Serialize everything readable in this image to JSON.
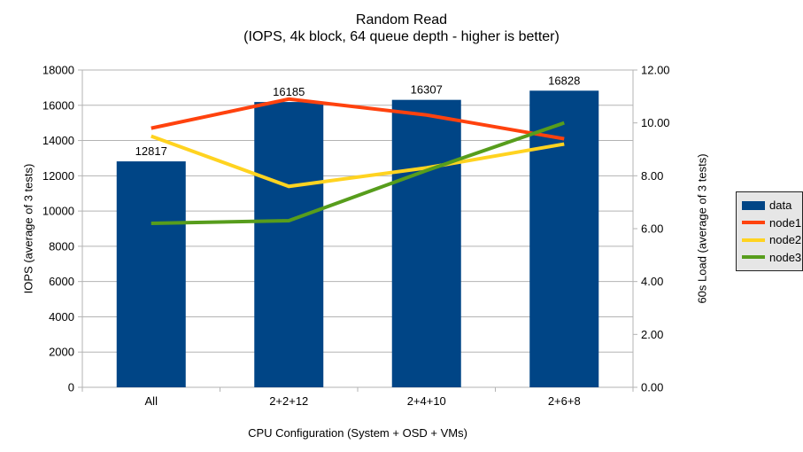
{
  "title": "Random Read",
  "subtitle": "(IOPS, 4k block, 64 queue depth - higher is better)",
  "chart_data": {
    "type": "combo_bar_line",
    "title": "Random Read",
    "subtitle": "(IOPS, 4k block, 64 queue depth - higher is better)",
    "categories": [
      "All",
      "2+2+12",
      "2+4+10",
      "2+6+8"
    ],
    "series": [
      {
        "name": "data",
        "type": "bar",
        "axis": "left",
        "color": "#004586",
        "values": [
          12817,
          16185,
          16307,
          16828
        ],
        "labels": [
          "12817",
          "16185",
          "16307",
          "16828"
        ]
      },
      {
        "name": "node1",
        "type": "line",
        "axis": "right",
        "color": "#ff420e",
        "values": [
          9.8,
          10.9,
          10.3,
          9.4
        ]
      },
      {
        "name": "node2",
        "type": "line",
        "axis": "right",
        "color": "#ffd320",
        "values": [
          9.5,
          7.6,
          8.3,
          9.2
        ]
      },
      {
        "name": "node3",
        "type": "line",
        "axis": "right",
        "color": "#579d1c",
        "values": [
          6.2,
          6.3,
          8.2,
          10.0
        ]
      }
    ],
    "left_axis": {
      "title": "IOPS (average of 3 tests)",
      "min": 0,
      "max": 18000,
      "step": 2000,
      "tick_labels": [
        "0",
        "2000",
        "4000",
        "6000",
        "8000",
        "10000",
        "12000",
        "14000",
        "16000",
        "18000"
      ]
    },
    "right_axis": {
      "title": "60s Load (average of 3 tests)",
      "min": 0,
      "max": 12,
      "step": 2,
      "tick_labels": [
        "0.00",
        "2.00",
        "4.00",
        "6.00",
        "8.00",
        "10.00",
        "12.00"
      ]
    },
    "x_axis": {
      "title": "CPU Configuration (System + OSD + VMs)"
    },
    "legend": {
      "position": "right",
      "entries": [
        "data",
        "node1",
        "node2",
        "node3"
      ]
    },
    "grid": "horizontal",
    "colors": {
      "grid": "#b3b3b3",
      "axis": "#b3b3b3",
      "text": "#000000",
      "legend_bg": "#e6e6e6",
      "legend_border": "#222222",
      "background": "#ffffff"
    }
  }
}
